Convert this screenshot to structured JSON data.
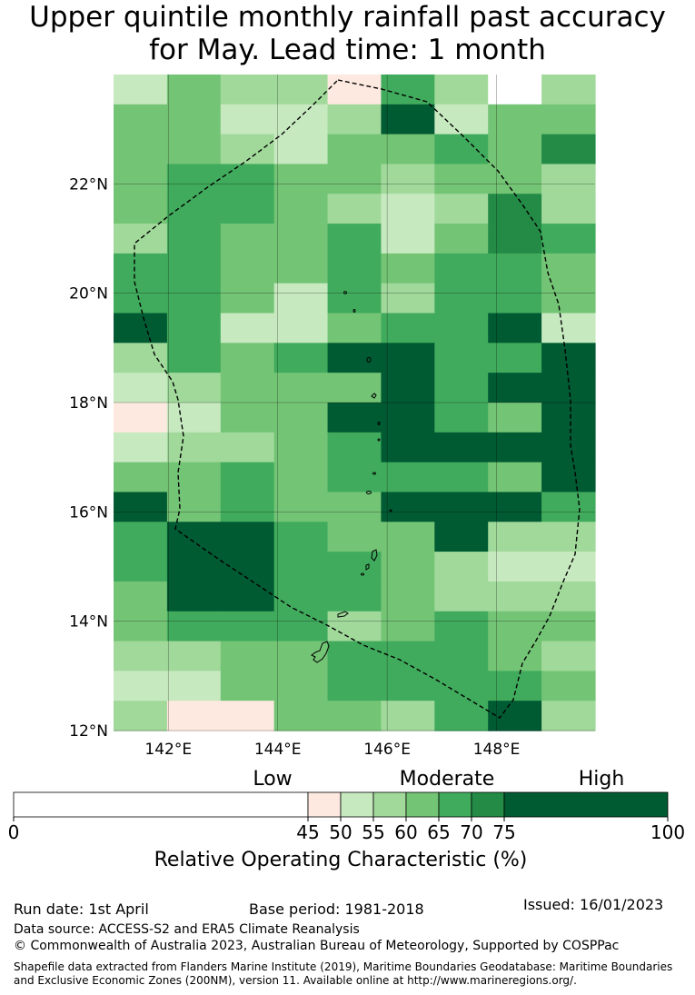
{
  "title": {
    "line1": "Upper quintile monthly rainfall past accuracy",
    "line2": "for May. Lead time: 1 month"
  },
  "map": {
    "lon_range": [
      141.0,
      149.8
    ],
    "lat_range": [
      12.0,
      24.0
    ],
    "lon_ticks": [
      {
        "value": 142,
        "label": "142°E"
      },
      {
        "value": 144,
        "label": "144°E"
      },
      {
        "value": 146,
        "label": "146°E"
      },
      {
        "value": 148,
        "label": "148°E"
      }
    ],
    "lat_ticks": [
      {
        "value": 12,
        "label": "12°N"
      },
      {
        "value": 14,
        "label": "14°N"
      },
      {
        "value": 16,
        "label": "16°N"
      },
      {
        "value": 18,
        "label": "18°N"
      },
      {
        "value": 20,
        "label": "20°N"
      },
      {
        "value": 22,
        "label": "22°N"
      }
    ],
    "grid_cols": 9,
    "grid_rows": 22,
    "cell_classes": [
      "3,5,4,4,2,6,4,1,4",
      "5,5,3,3,4,8,3,5,5",
      "5,5,4,3,5,5,6,5,7",
      "5,6,6,5,5,4,5,5,4",
      "5,6,6,5,4,3,4,7,4",
      "4,6,5,5,6,3,5,7,6",
      "6,6,5,5,6,5,6,6,5",
      "6,6,5,3,6,4,6,6,5",
      "8,6,3,3,5,6,6,8,3",
      "4,6,5,6,8,8,6,6,8",
      "3,4,5,5,5,8,6,8,8",
      "2,3,5,5,8,8,6,5,8",
      "3,4,4,5,6,8,8,8,8",
      "5,5,6,5,6,6,6,5,8",
      "8,5,6,5,5,8,8,8,6",
      "6,8,8,6,5,5,8,4,4",
      "6,8,8,6,6,5,4,3,3",
      "5,8,8,6,6,5,4,4,4",
      "5,6,6,6,4,5,6,5,5",
      "4,4,5,5,6,6,6,5,4",
      "3,3,5,5,6,6,6,6,5",
      "4,2,2,5,5,4,6,8,4"
    ]
  },
  "colorbar": {
    "bounds": [
      0,
      45,
      50,
      55,
      60,
      65,
      70,
      75,
      100
    ],
    "colors": [
      "#ffffff",
      "#fee9e0",
      "#c7e9c0",
      "#a1d99b",
      "#74c476",
      "#41ab5d",
      "#238b45",
      "#005a32"
    ],
    "tick_labels": [
      "0",
      "45",
      "50",
      "55",
      "60",
      "65",
      "70",
      "75",
      "100"
    ],
    "categories": [
      "Low",
      "Moderate",
      "High"
    ],
    "label": "Relative Operating Characteristic (%)"
  },
  "footer": {
    "run_date": "Run date: 1st April",
    "base_period": "Base period: 1981-2018",
    "issued": "Issued: 16/01/2023",
    "data_source": "Data source: ACCESS-S2 and ERA5 Climate Reanalysis",
    "copyright": "© Commonwealth of Australia 2023, Australian Bureau of Meteorology, Supported by COSPPac",
    "shapefile_line1": "Shapefile data extracted from Flanders Marine Institute (2019), Maritime Boundaries Geodatabase: Maritime Boundaries",
    "shapefile_line2": "and Exclusive Economic Zones (200NM), version 11. Available online at http://www.marineregions.org/."
  }
}
